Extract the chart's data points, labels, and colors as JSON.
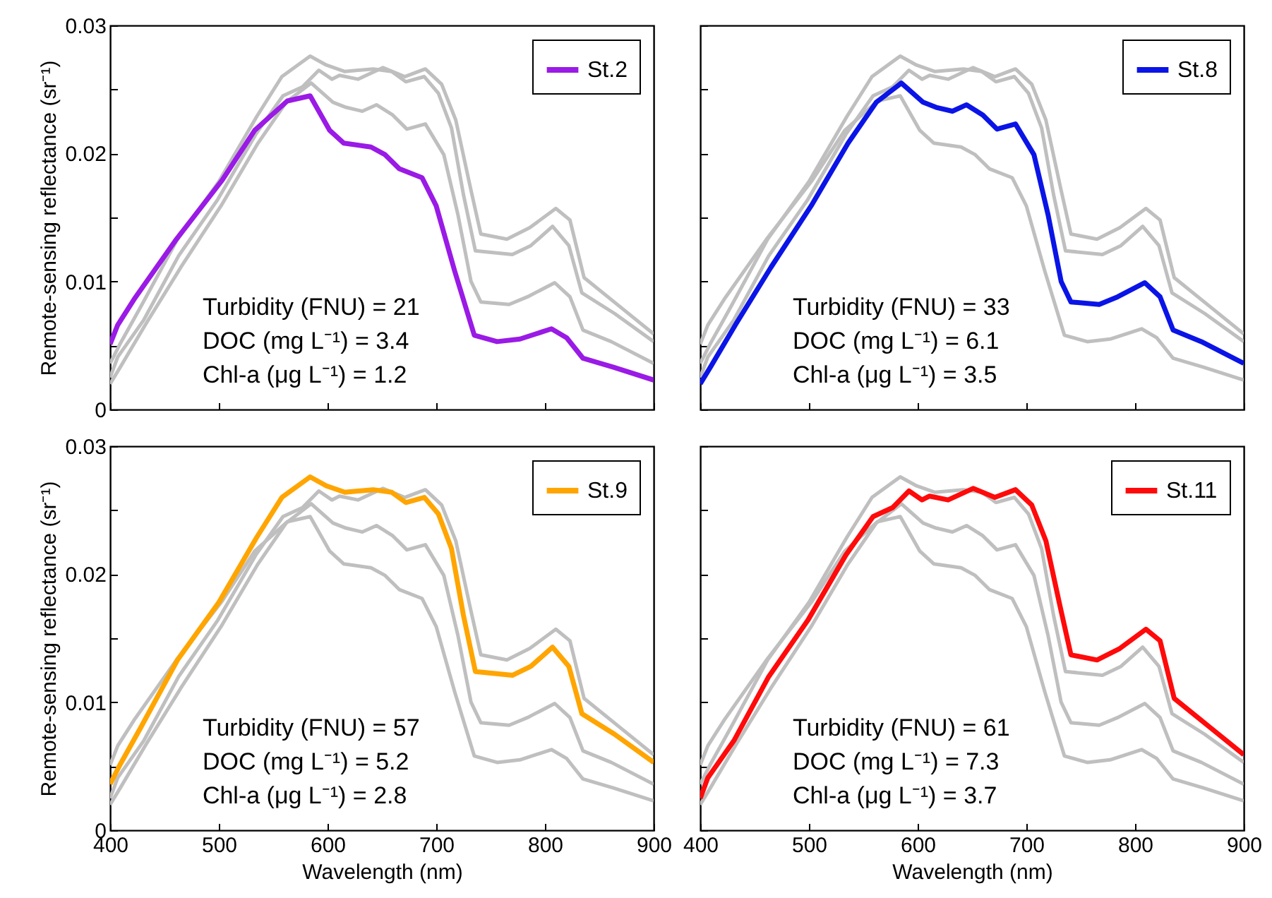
{
  "chart_data": [
    {
      "type": "line",
      "ylabel": "Remote-sensing reflectance  (sr⁻¹)",
      "xlim": [
        400,
        900
      ],
      "xticks": [
        400,
        500,
        600,
        700,
        800,
        900
      ],
      "ylim": [
        0,
        0.03
      ],
      "yticks": [
        0,
        {
          "value": 0.005,
          "label": null
        },
        0.01,
        {
          "value": 0.015,
          "label": null
        },
        0.02,
        {
          "value": 0.025,
          "label": null
        },
        0.03
      ],
      "tick_labels": "y",
      "legend": "top right",
      "grid": false,
      "annotations": [
        "Turbidity (FNU) = 21",
        "DOC (mg L⁻¹) = 3.4",
        "Chl-a (μg L⁻¹) = 1.2"
      ],
      "series": [
        {
          "color": "#bfbfbf",
          "x": [
            400,
            410,
            433,
            465,
            502,
            536,
            562,
            585,
            605,
            617,
            632,
            645,
            660,
            673,
            690,
            707,
            720,
            732,
            741,
            767,
            784,
            809,
            823,
            835,
            861,
            900
          ],
          "values": [
            0.002,
            0.0034,
            0.0067,
            0.0111,
            0.0159,
            0.0208,
            0.024,
            0.0255,
            0.024,
            0.0236,
            0.0233,
            0.0238,
            0.023,
            0.0219,
            0.0223,
            0.0199,
            0.0152,
            0.01,
            0.0084,
            0.0082,
            0.0088,
            0.0099,
            0.0088,
            0.0062,
            0.0053,
            0.0036
          ]
        },
        {
          "color": "#bfbfbf",
          "x": [
            400,
            409,
            428,
            462,
            500,
            535,
            558,
            584,
            599,
            616,
            642,
            659,
            672,
            689,
            702,
            714,
            725,
            736,
            770,
            787,
            807,
            822,
            834,
            864,
            900
          ],
          "values": [
            0.0036,
            0.0051,
            0.008,
            0.0133,
            0.0178,
            0.0229,
            0.026,
            0.0276,
            0.0269,
            0.0264,
            0.0266,
            0.0264,
            0.0256,
            0.026,
            0.0247,
            0.022,
            0.0168,
            0.0124,
            0.0121,
            0.0128,
            0.0143,
            0.0128,
            0.0091,
            0.0075,
            0.0053
          ]
        },
        {
          "color": "#bfbfbf",
          "x": [
            400,
            407,
            431,
            463,
            499,
            534,
            559,
            577,
            592,
            604,
            611,
            628,
            651,
            671,
            690,
            705,
            718,
            731,
            741,
            765,
            786,
            810,
            823,
            836,
            868,
            900
          ],
          "values": [
            0.0025,
            0.0041,
            0.007,
            0.012,
            0.0164,
            0.0215,
            0.0245,
            0.0252,
            0.0265,
            0.0258,
            0.0261,
            0.0258,
            0.0267,
            0.026,
            0.0266,
            0.0254,
            0.0226,
            0.0175,
            0.0137,
            0.0133,
            0.0142,
            0.0157,
            0.0148,
            0.0103,
            0.0081,
            0.0059
          ]
        },
        {
          "name": "St.2",
          "color": "#9a1ae6",
          "x": [
            400,
            407,
            422,
            461,
            503,
            533,
            563,
            584,
            602,
            615,
            640,
            653,
            666,
            687,
            700,
            717,
            735,
            756,
            777,
            806,
            820,
            835,
            863,
            900
          ],
          "values": [
            0.0051,
            0.0066,
            0.0086,
            0.0133,
            0.0179,
            0.0218,
            0.0241,
            0.0245,
            0.0218,
            0.0208,
            0.0205,
            0.0199,
            0.0188,
            0.0181,
            0.0159,
            0.0108,
            0.0058,
            0.0053,
            0.0055,
            0.0063,
            0.0056,
            0.004,
            0.0033,
            0.0023
          ]
        }
      ]
    },
    {
      "type": "line",
      "xlim": [
        400,
        900
      ],
      "xticks": [
        400,
        500,
        600,
        700,
        800,
        900
      ],
      "ylim": [
        0,
        0.03
      ],
      "yticks": [
        0,
        {
          "value": 0.005,
          "label": null
        },
        0.01,
        {
          "value": 0.015,
          "label": null
        },
        0.02,
        {
          "value": 0.025,
          "label": null
        },
        0.03
      ],
      "tick_labels": false,
      "legend": "top right",
      "grid": false,
      "annotations": [
        "Turbidity (FNU) = 33",
        "DOC (mg L⁻¹) = 6.1",
        "Chl-a (μg L⁻¹) = 3.5"
      ],
      "series": [
        {
          "color": "#bfbfbf",
          "x": [
            400,
            407,
            422,
            461,
            503,
            533,
            563,
            584,
            602,
            615,
            640,
            653,
            666,
            687,
            700,
            717,
            735,
            756,
            777,
            806,
            820,
            835,
            863,
            900
          ],
          "values": [
            0.0051,
            0.0066,
            0.0086,
            0.0133,
            0.0179,
            0.0218,
            0.0241,
            0.0245,
            0.0218,
            0.0208,
            0.0205,
            0.0199,
            0.0188,
            0.0181,
            0.0159,
            0.0108,
            0.0058,
            0.0053,
            0.0055,
            0.0063,
            0.0056,
            0.004,
            0.0033,
            0.0023
          ]
        },
        {
          "color": "#bfbfbf",
          "x": [
            400,
            409,
            428,
            462,
            500,
            535,
            558,
            584,
            599,
            616,
            642,
            659,
            672,
            689,
            702,
            714,
            725,
            736,
            770,
            787,
            807,
            822,
            834,
            864,
            900
          ],
          "values": [
            0.0036,
            0.0051,
            0.008,
            0.0133,
            0.0178,
            0.0229,
            0.026,
            0.0276,
            0.0269,
            0.0264,
            0.0266,
            0.0264,
            0.0256,
            0.026,
            0.0247,
            0.022,
            0.0168,
            0.0124,
            0.0121,
            0.0128,
            0.0143,
            0.0128,
            0.0091,
            0.0075,
            0.0053
          ]
        },
        {
          "color": "#bfbfbf",
          "x": [
            400,
            407,
            431,
            463,
            499,
            534,
            559,
            577,
            592,
            604,
            611,
            628,
            651,
            671,
            690,
            705,
            718,
            731,
            741,
            765,
            786,
            810,
            823,
            836,
            868,
            900
          ],
          "values": [
            0.0025,
            0.0041,
            0.007,
            0.012,
            0.0164,
            0.0215,
            0.0245,
            0.0252,
            0.0265,
            0.0258,
            0.0261,
            0.0258,
            0.0267,
            0.026,
            0.0266,
            0.0254,
            0.0226,
            0.0175,
            0.0137,
            0.0133,
            0.0142,
            0.0157,
            0.0148,
            0.0103,
            0.0081,
            0.0059
          ]
        },
        {
          "name": "St.8",
          "color": "#0a14e6",
          "x": [
            400,
            410,
            433,
            465,
            502,
            536,
            562,
            585,
            605,
            617,
            632,
            645,
            660,
            673,
            690,
            707,
            720,
            732,
            741,
            767,
            784,
            809,
            823,
            835,
            861,
            900
          ],
          "values": [
            0.002,
            0.0034,
            0.0067,
            0.0111,
            0.0159,
            0.0208,
            0.024,
            0.0255,
            0.024,
            0.0236,
            0.0233,
            0.0238,
            0.023,
            0.0219,
            0.0223,
            0.0199,
            0.0152,
            0.01,
            0.0084,
            0.0082,
            0.0088,
            0.0099,
            0.0088,
            0.0062,
            0.0053,
            0.0036
          ]
        }
      ]
    },
    {
      "type": "line",
      "xlabel": "Wavelength (nm)",
      "ylabel": "Remote-sensing reflectance  (sr⁻¹)",
      "xlim": [
        400,
        900
      ],
      "xticks": [
        400,
        500,
        600,
        700,
        800,
        900
      ],
      "ylim": [
        0,
        0.03
      ],
      "yticks": [
        0,
        {
          "value": 0.005,
          "label": null
        },
        0.01,
        {
          "value": 0.015,
          "label": null
        },
        0.02,
        {
          "value": 0.025,
          "label": null
        },
        0.03
      ],
      "legend": "top right",
      "grid": false,
      "annotations": [
        "Turbidity (FNU) = 57",
        "DOC (mg L⁻¹) = 5.2",
        "Chl-a (μg L⁻¹) = 2.8"
      ],
      "series": [
        {
          "color": "#bfbfbf",
          "x": [
            400,
            407,
            422,
            461,
            503,
            533,
            563,
            584,
            602,
            615,
            640,
            653,
            666,
            687,
            700,
            717,
            735,
            756,
            777,
            806,
            820,
            835,
            863,
            900
          ],
          "values": [
            0.0051,
            0.0066,
            0.0086,
            0.0133,
            0.0179,
            0.0218,
            0.0241,
            0.0245,
            0.0218,
            0.0208,
            0.0205,
            0.0199,
            0.0188,
            0.0181,
            0.0159,
            0.0108,
            0.0058,
            0.0053,
            0.0055,
            0.0063,
            0.0056,
            0.004,
            0.0033,
            0.0023
          ]
        },
        {
          "color": "#bfbfbf",
          "x": [
            400,
            410,
            433,
            465,
            502,
            536,
            562,
            585,
            605,
            617,
            632,
            645,
            660,
            673,
            690,
            707,
            720,
            732,
            741,
            767,
            784,
            809,
            823,
            835,
            861,
            900
          ],
          "values": [
            0.002,
            0.0034,
            0.0067,
            0.0111,
            0.0159,
            0.0208,
            0.024,
            0.0255,
            0.024,
            0.0236,
            0.0233,
            0.0238,
            0.023,
            0.0219,
            0.0223,
            0.0199,
            0.0152,
            0.01,
            0.0084,
            0.0082,
            0.0088,
            0.0099,
            0.0088,
            0.0062,
            0.0053,
            0.0036
          ]
        },
        {
          "color": "#bfbfbf",
          "x": [
            400,
            407,
            431,
            463,
            499,
            534,
            559,
            577,
            592,
            604,
            611,
            628,
            651,
            671,
            690,
            705,
            718,
            731,
            741,
            765,
            786,
            810,
            823,
            836,
            868,
            900
          ],
          "values": [
            0.0025,
            0.0041,
            0.007,
            0.012,
            0.0164,
            0.0215,
            0.0245,
            0.0252,
            0.0265,
            0.0258,
            0.0261,
            0.0258,
            0.0267,
            0.026,
            0.0266,
            0.0254,
            0.0226,
            0.0175,
            0.0137,
            0.0133,
            0.0142,
            0.0157,
            0.0148,
            0.0103,
            0.0081,
            0.0059
          ]
        },
        {
          "name": "St.9",
          "color": "#ffa500",
          "x": [
            400,
            409,
            428,
            462,
            500,
            535,
            558,
            584,
            599,
            616,
            642,
            659,
            672,
            689,
            702,
            714,
            725,
            736,
            770,
            787,
            807,
            822,
            834,
            864,
            900
          ],
          "values": [
            0.0036,
            0.0051,
            0.008,
            0.0133,
            0.0178,
            0.0229,
            0.026,
            0.0276,
            0.0269,
            0.0264,
            0.0266,
            0.0264,
            0.0256,
            0.026,
            0.0247,
            0.022,
            0.0168,
            0.0124,
            0.0121,
            0.0128,
            0.0143,
            0.0128,
            0.0091,
            0.0075,
            0.0053
          ]
        }
      ]
    },
    {
      "type": "line",
      "xlabel": "Wavelength (nm)",
      "xlim": [
        400,
        900
      ],
      "xticks": [
        400,
        500,
        600,
        700,
        800,
        900
      ],
      "ylim": [
        0,
        0.03
      ],
      "yticks": [
        0,
        {
          "value": 0.005,
          "label": null
        },
        0.01,
        {
          "value": 0.015,
          "label": null
        },
        0.02,
        {
          "value": 0.025,
          "label": null
        },
        0.03
      ],
      "tick_labels": "x",
      "legend": "top right",
      "grid": false,
      "annotations": [
        "Turbidity (FNU) = 61",
        "DOC (mg L⁻¹) = 7.3",
        "Chl-a (μg L⁻¹) = 3.7"
      ],
      "series": [
        {
          "color": "#bfbfbf",
          "x": [
            400,
            407,
            422,
            461,
            503,
            533,
            563,
            584,
            602,
            615,
            640,
            653,
            666,
            687,
            700,
            717,
            735,
            756,
            777,
            806,
            820,
            835,
            863,
            900
          ],
          "values": [
            0.0051,
            0.0066,
            0.0086,
            0.0133,
            0.0179,
            0.0218,
            0.0241,
            0.0245,
            0.0218,
            0.0208,
            0.0205,
            0.0199,
            0.0188,
            0.0181,
            0.0159,
            0.0108,
            0.0058,
            0.0053,
            0.0055,
            0.0063,
            0.0056,
            0.004,
            0.0033,
            0.0023
          ]
        },
        {
          "color": "#bfbfbf",
          "x": [
            400,
            410,
            433,
            465,
            502,
            536,
            562,
            585,
            605,
            617,
            632,
            645,
            660,
            673,
            690,
            707,
            720,
            732,
            741,
            767,
            784,
            809,
            823,
            835,
            861,
            900
          ],
          "values": [
            0.002,
            0.0034,
            0.0067,
            0.0111,
            0.0159,
            0.0208,
            0.024,
            0.0255,
            0.024,
            0.0236,
            0.0233,
            0.0238,
            0.023,
            0.0219,
            0.0223,
            0.0199,
            0.0152,
            0.01,
            0.0084,
            0.0082,
            0.0088,
            0.0099,
            0.0088,
            0.0062,
            0.0053,
            0.0036
          ]
        },
        {
          "color": "#bfbfbf",
          "x": [
            400,
            409,
            428,
            462,
            500,
            535,
            558,
            584,
            599,
            616,
            642,
            659,
            672,
            689,
            702,
            714,
            725,
            736,
            770,
            787,
            807,
            822,
            834,
            864,
            900
          ],
          "values": [
            0.0036,
            0.0051,
            0.008,
            0.0133,
            0.0178,
            0.0229,
            0.026,
            0.0276,
            0.0269,
            0.0264,
            0.0266,
            0.0264,
            0.0256,
            0.026,
            0.0247,
            0.022,
            0.0168,
            0.0124,
            0.0121,
            0.0128,
            0.0143,
            0.0128,
            0.0091,
            0.0075,
            0.0053
          ]
        },
        {
          "name": "St.11",
          "color": "#ff0a0a",
          "x": [
            400,
            407,
            431,
            463,
            499,
            534,
            559,
            577,
            592,
            604,
            611,
            628,
            651,
            671,
            690,
            705,
            718,
            731,
            741,
            765,
            786,
            810,
            823,
            836,
            868,
            900
          ],
          "values": [
            0.0025,
            0.0041,
            0.007,
            0.012,
            0.0164,
            0.0215,
            0.0245,
            0.0252,
            0.0265,
            0.0258,
            0.0261,
            0.0258,
            0.0267,
            0.026,
            0.0266,
            0.0254,
            0.0226,
            0.0175,
            0.0137,
            0.0133,
            0.0142,
            0.0157,
            0.0148,
            0.0103,
            0.0081,
            0.0059
          ]
        }
      ]
    }
  ]
}
